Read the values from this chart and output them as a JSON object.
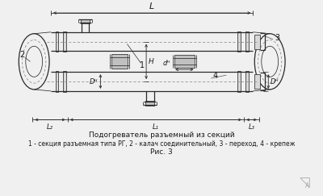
{
  "bg_color": "#f0f0f0",
  "line_color": "#2a2a2a",
  "dim_color": "#2a2a2a",
  "text_color": "#1a1a1a",
  "title_line1": "Подогреватель разъемный из секций",
  "title_line2": "1 - секция разъемная типа РГ, 2 - калач соединительный, 3 - переход, 4 - крепеж",
  "title_line3": "Рис. 3",
  "label_L": "L",
  "label_L1": "L₁",
  "label_L2": "L₂",
  "label_L3": "L₃",
  "label_DH": "Dᴴ",
  "label_dH": "dᴴ",
  "label_H": "H",
  "label_1": "1",
  "label_2": "2",
  "label_3": "3",
  "label_4": "4"
}
